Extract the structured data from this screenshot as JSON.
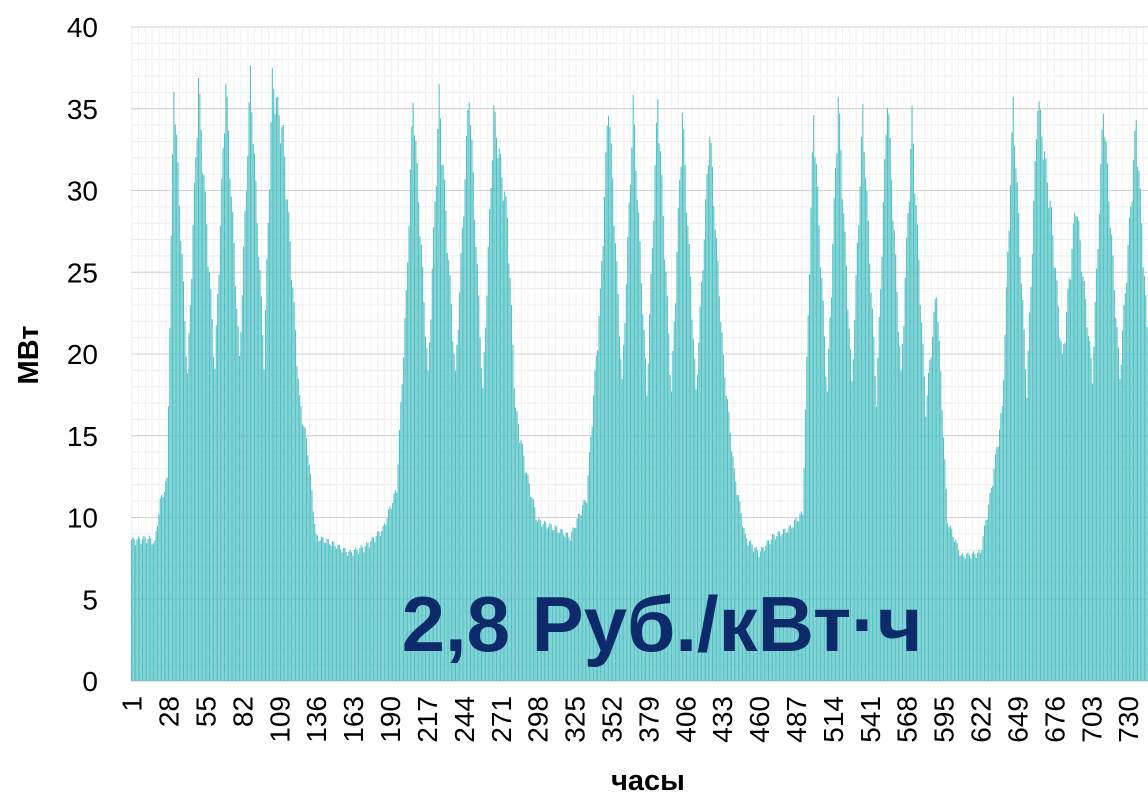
{
  "chart_data": {
    "type": "bar",
    "ylabel": "МВт",
    "xlabel": "часы",
    "ylim": [
      0,
      40
    ],
    "yticks": [
      0,
      5,
      10,
      15,
      20,
      25,
      30,
      35,
      40
    ],
    "xtick_labels": [
      "1",
      "28",
      "55",
      "82",
      "109",
      "136",
      "163",
      "190",
      "217",
      "244",
      "271",
      "298",
      "325",
      "352",
      "379",
      "406",
      "433",
      "460",
      "487",
      "514",
      "541",
      "568",
      "595",
      "622",
      "649",
      "676",
      "703",
      "730"
    ],
    "x_range": [
      1,
      744
    ],
    "grid": true,
    "bar_color": "#4fc1c4",
    "annotation": "2,8 Руб./кВт·ч",
    "annotation_color": "#0d2a6b",
    "profile_keypoints": [
      [
        1,
        8.8
      ],
      [
        14,
        8.9
      ],
      [
        18,
        8.6
      ],
      [
        22,
        11.2
      ],
      [
        27,
        12.5
      ],
      [
        32,
        37.3
      ],
      [
        42,
        19.0
      ],
      [
        50,
        37.4
      ],
      [
        62,
        19.5
      ],
      [
        70,
        37.5
      ],
      [
        80,
        20.0
      ],
      [
        88,
        37.8
      ],
      [
        98,
        20.0
      ],
      [
        104,
        37.5
      ],
      [
        112,
        34.0
      ],
      [
        118,
        26.0
      ],
      [
        124,
        17.5
      ],
      [
        130,
        14.5
      ],
      [
        136,
        9.0
      ],
      [
        148,
        8.6
      ],
      [
        160,
        8.0
      ],
      [
        172,
        8.4
      ],
      [
        185,
        9.5
      ],
      [
        195,
        12.0
      ],
      [
        202,
        24.0
      ],
      [
        207,
        36.5
      ],
      [
        218,
        19.0
      ],
      [
        226,
        36.5
      ],
      [
        238,
        19.0
      ],
      [
        248,
        37.0
      ],
      [
        258,
        18.0
      ],
      [
        266,
        35.5
      ],
      [
        276,
        29.0
      ],
      [
        282,
        17.0
      ],
      [
        290,
        13.0
      ],
      [
        298,
        10.0
      ],
      [
        312,
        9.5
      ],
      [
        322,
        9.0
      ],
      [
        334,
        11.5
      ],
      [
        344,
        24.0
      ],
      [
        350,
        36.5
      ],
      [
        360,
        18.5
      ],
      [
        368,
        36.0
      ],
      [
        378,
        18.0
      ],
      [
        386,
        36.5
      ],
      [
        396,
        18.0
      ],
      [
        404,
        35.5
      ],
      [
        414,
        18.0
      ],
      [
        424,
        34.5
      ],
      [
        434,
        20.0
      ],
      [
        442,
        13.0
      ],
      [
        450,
        9.0
      ],
      [
        460,
        8.0
      ],
      [
        470,
        9.0
      ],
      [
        482,
        9.5
      ],
      [
        492,
        10.5
      ],
      [
        500,
        35.5
      ],
      [
        510,
        18.0
      ],
      [
        518,
        36.5
      ],
      [
        528,
        18.5
      ],
      [
        536,
        35.5
      ],
      [
        546,
        17.5
      ],
      [
        554,
        36.8
      ],
      [
        564,
        19.0
      ],
      [
        572,
        35.2
      ],
      [
        582,
        17.0
      ],
      [
        590,
        24.5
      ],
      [
        598,
        10.0
      ],
      [
        608,
        7.8
      ],
      [
        622,
        8.0
      ],
      [
        630,
        12.0
      ],
      [
        638,
        17.0
      ],
      [
        646,
        36.0
      ],
      [
        656,
        18.0
      ],
      [
        664,
        36.5
      ],
      [
        674,
        29.0
      ],
      [
        682,
        20.0
      ],
      [
        692,
        30.0
      ],
      [
        704,
        19.0
      ],
      [
        712,
        36.0
      ],
      [
        724,
        19.0
      ],
      [
        736,
        35.0
      ],
      [
        744,
        22.0
      ]
    ]
  }
}
